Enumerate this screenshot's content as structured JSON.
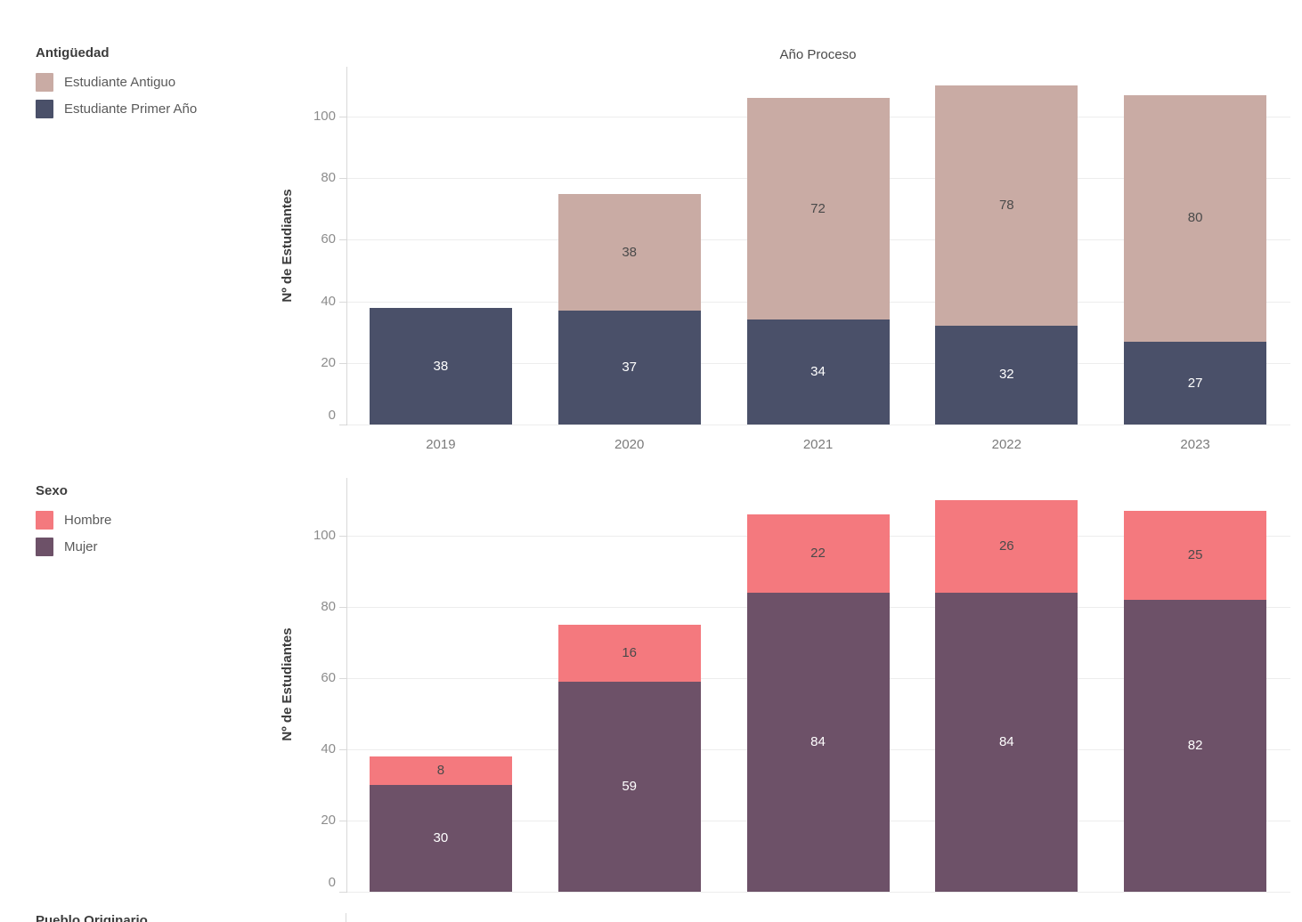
{
  "chart_data": [
    {
      "type": "bar",
      "stacked": true,
      "title": "Año Proceso",
      "legend_title": "Antigüedad",
      "ylabel": "Nº de Estudiantes",
      "categories": [
        "2019",
        "2020",
        "2021",
        "2022",
        "2023"
      ],
      "series": [
        {
          "name": "Estudiante Antiguo",
          "color": "#c9aba4",
          "label_color": "#4a4a4a",
          "values": [
            0,
            38,
            72,
            78,
            80
          ]
        },
        {
          "name": "Estudiante Primer Año",
          "color": "#4a5069",
          "label_color": "#ffffff",
          "values": [
            38,
            37,
            34,
            32,
            27
          ]
        }
      ],
      "totals": [
        38,
        75,
        106,
        110,
        107
      ],
      "yticks": [
        0,
        20,
        40,
        60,
        80,
        100
      ],
      "ylim": [
        0,
        116
      ],
      "grid": true,
      "legend_position": "top-left",
      "x_labels_visible": true
    },
    {
      "type": "bar",
      "stacked": true,
      "title": "",
      "legend_title": "Sexo",
      "ylabel": "Nº de Estudiantes",
      "categories": [
        "2019",
        "2020",
        "2021",
        "2022",
        "2023"
      ],
      "series": [
        {
          "name": "Hombre",
          "color": "#f4797e",
          "label_color": "#4a4a4a",
          "values": [
            8,
            16,
            22,
            26,
            25
          ]
        },
        {
          "name": "Mujer",
          "color": "#6d5168",
          "label_color": "#ffffff",
          "values": [
            30,
            59,
            84,
            84,
            82
          ]
        }
      ],
      "totals": [
        38,
        75,
        106,
        110,
        107
      ],
      "yticks": [
        0,
        20,
        40,
        60,
        80,
        100
      ],
      "ylim": [
        0,
        116
      ],
      "grid": true,
      "legend_position": "left",
      "x_labels_visible": false
    }
  ],
  "cutoff_chart": {
    "legend_title": "Pueblo Originario"
  }
}
